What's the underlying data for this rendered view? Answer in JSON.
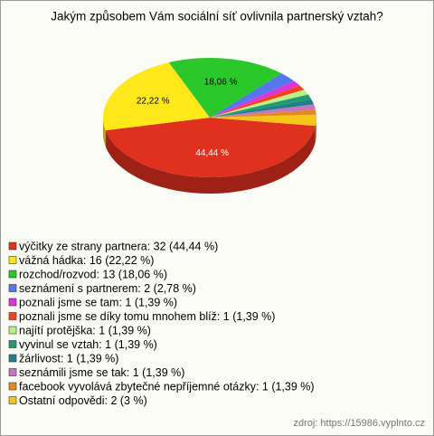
{
  "chart_data": {
    "type": "pie3d",
    "title": "Jakým způsobem Vám sociální síť ovlivnila partnerský vztah?",
    "categories": [
      "výčitky ze strany partnera: 32 (44,44 %)",
      "vážná hádka: 16 (22,22 %)",
      "rozchod/rozvod: 13 (18,06 %)",
      "seznámení s partnerem: 2 (2,78 %)",
      "poznali jsme se tam: 1 (1,39 %)",
      "poznali jsme se díky tomu mnohem blíž: 1 (1,39 %)",
      "najítí protějška: 1 (1,39 %)",
      "vyvinul se vztah: 1 (1,39 %)",
      "žárlivost: 1 (1,39 %)",
      "seznámili jsme se tak: 1 (1,39 %)",
      "facebook vyvolává zbytečné nepříjemné otázky: 1 (1,39 %)",
      "Ostatní odpovědi: 2 (3 %)"
    ],
    "values": [
      44.44,
      22.22,
      18.06,
      2.78,
      1.39,
      1.39,
      1.39,
      1.39,
      1.39,
      1.39,
      1.39,
      3
    ],
    "value_labels": [
      "44,44 %",
      "22,22 %",
      "18,06 %",
      null,
      null,
      null,
      null,
      null,
      null,
      null,
      null,
      null
    ],
    "colors": [
      "#e0301e",
      "#ffe81a",
      "#2ac82a",
      "#5577ee",
      "#dd33dd",
      "#ee4422",
      "#bbf088",
      "#229977",
      "#227f88",
      "#c377c3",
      "#e08a22",
      "#f5c518"
    ],
    "source": "zdroj: https://15986.vyplnto.cz"
  }
}
